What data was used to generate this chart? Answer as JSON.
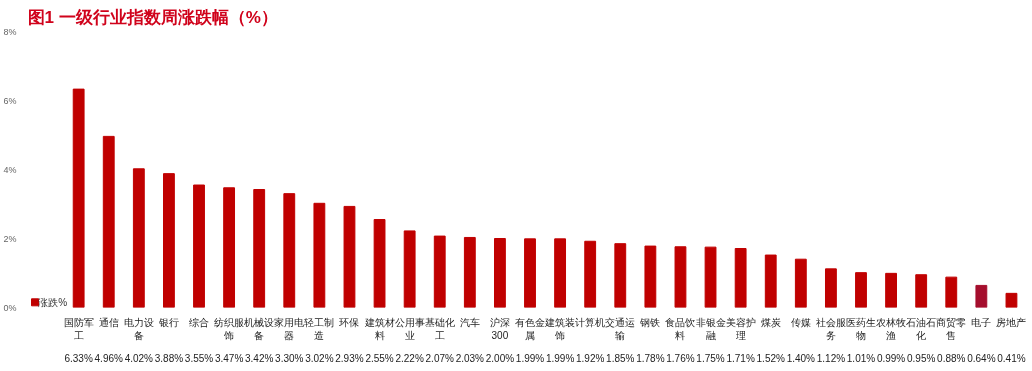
{
  "chart_data": {
    "type": "bar",
    "title": "图1  一级行业指数周涨跌幅（%）",
    "categories": [
      "国防军工",
      "通信",
      "电力设备",
      "银行",
      "综合",
      "纺织服饰",
      "机械设备",
      "家用电器",
      "轻工制造",
      "环保",
      "建筑材料",
      "公用事业",
      "基础化工",
      "汽车",
      "沪深300",
      "有色金属",
      "建筑装饰",
      "计算机",
      "交通运输",
      "钢铁",
      "食品饮料",
      "非银金融",
      "美容护理",
      "煤炭",
      "传媒",
      "社会服务",
      "医药生物",
      "农林牧渔",
      "石油石化",
      "商贸零售",
      "电子",
      "房地产"
    ],
    "series": [
      {
        "name": "涨跌%",
        "color": "#c00000",
        "colors": [
          "#c00000",
          "#c00000",
          "#c00000",
          "#c00000",
          "#c00000",
          "#c00000",
          "#c00000",
          "#c00000",
          "#c00000",
          "#c00000",
          "#c00000",
          "#c00000",
          "#c00000",
          "#c00000",
          "#c00000",
          "#c00000",
          "#c00000",
          "#c00000",
          "#c00000",
          "#c00000",
          "#c00000",
          "#c00000",
          "#c00000",
          "#c00000",
          "#c00000",
          "#c00000",
          "#c00000",
          "#c00000",
          "#c00000",
          "#c00000",
          "#a50e2d",
          "#c00000"
        ],
        "values": [
          6.33,
          4.96,
          4.02,
          3.88,
          3.55,
          3.47,
          3.42,
          3.3,
          3.02,
          2.93,
          2.55,
          2.22,
          2.07,
          2.03,
          2.0,
          1.99,
          1.99,
          1.92,
          1.85,
          1.78,
          1.76,
          1.75,
          1.71,
          1.52,
          1.4,
          1.12,
          1.01,
          0.99,
          0.95,
          0.88,
          0.64,
          0.41
        ],
        "value_labels": [
          "6.33%",
          "4.96%",
          "4.02%",
          "3.88%",
          "3.55%",
          "3.47%",
          "3.42%",
          "3.30%",
          "3.02%",
          "2.93%",
          "2.55%",
          "2.22%",
          "2.07%",
          "2.03%",
          "2.00%",
          "1.99%",
          "1.99%",
          "1.92%",
          "1.85%",
          "1.78%",
          "1.76%",
          "1.75%",
          "1.71%",
          "1.52%",
          "1.40%",
          "1.12%",
          "1.01%",
          "0.99%",
          "0.95%",
          "0.88%",
          "0.64%",
          "0.41%"
        ]
      }
    ],
    "ylim": [
      0,
      8
    ],
    "yticks": [
      {
        "value": 0,
        "label": "0%"
      },
      {
        "value": 2,
        "label": "2%"
      },
      {
        "value": 4,
        "label": "4%"
      },
      {
        "value": 6,
        "label": "6%"
      },
      {
        "value": 8,
        "label": "8%"
      }
    ],
    "grid": false,
    "legend": "bottom"
  }
}
